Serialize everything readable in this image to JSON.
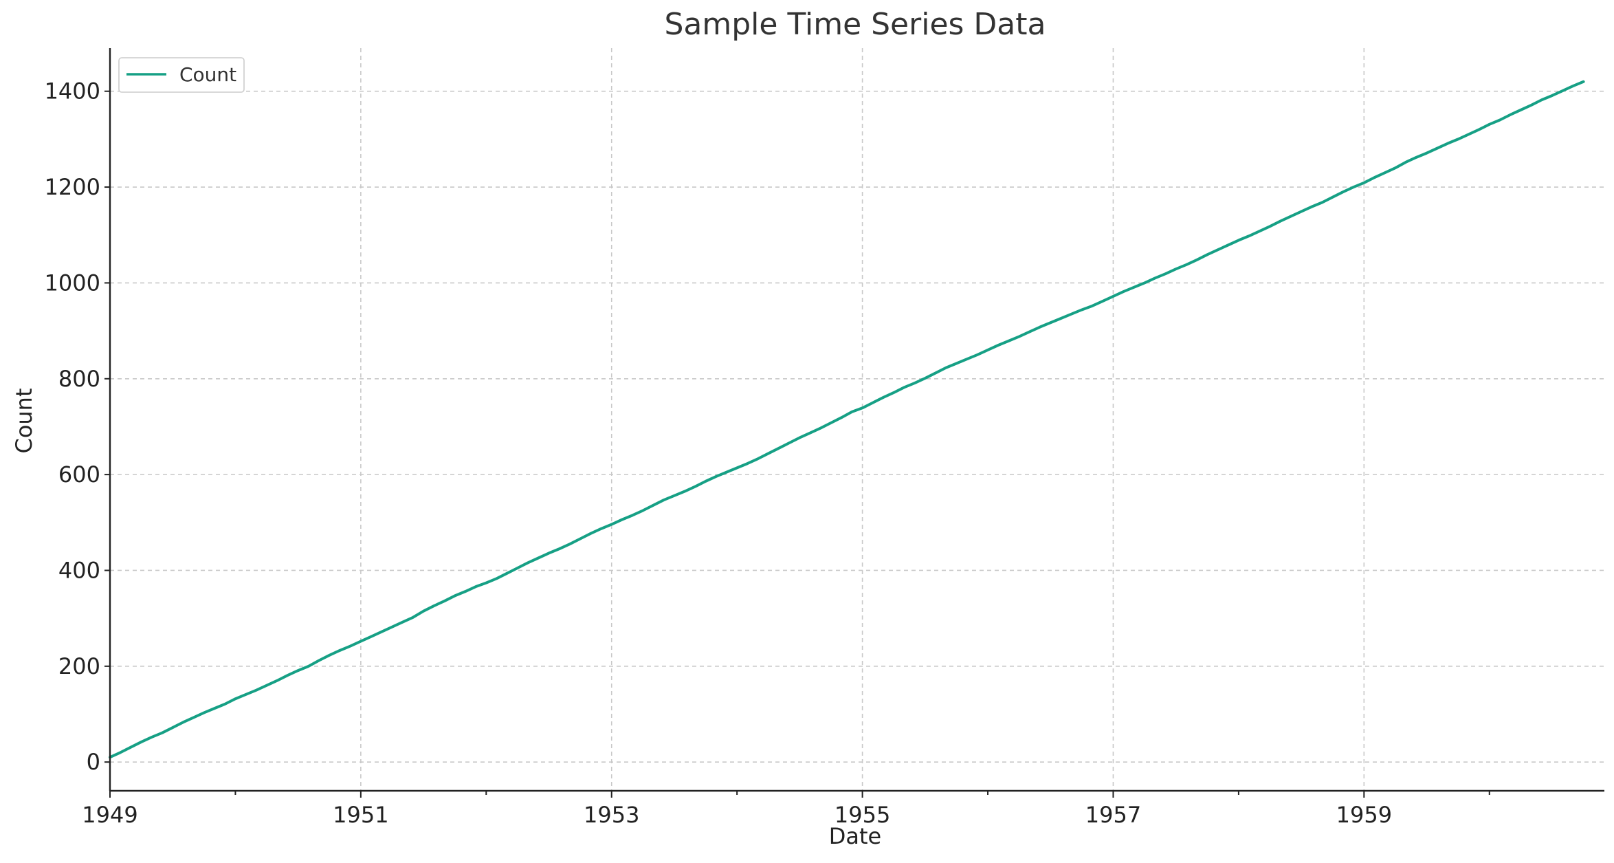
{
  "chart_data": {
    "type": "line",
    "title": "Sample Time Series Data",
    "xlabel": "Date",
    "ylabel": "Count",
    "x_start": "1949-01",
    "x_end": "1960-12",
    "x_frequency": "monthly",
    "xlim": [
      "1949-01",
      "1960-12"
    ],
    "ylim": [
      -60,
      1490
    ],
    "x_ticks": [
      "1949",
      "1951",
      "1953",
      "1955",
      "1957",
      "1959"
    ],
    "x_minor_ticks": [
      "1950",
      "1952",
      "1954",
      "1956",
      "1958",
      "1960"
    ],
    "y_ticks": [
      0,
      200,
      400,
      600,
      800,
      1000,
      1200,
      1400
    ],
    "grid": true,
    "legend": {
      "position": "top-left",
      "entries": [
        "Count"
      ]
    },
    "series": [
      {
        "name": "Count",
        "color": "#16a085",
        "values": [
          10,
          20,
          31,
          42,
          52,
          61,
          72,
          83,
          93,
          103,
          112,
          121,
          132,
          141,
          150,
          160,
          170,
          181,
          191,
          200,
          212,
          223,
          233,
          242,
          252,
          262,
          272,
          282,
          292,
          302,
          315,
          326,
          336,
          347,
          356,
          366,
          374,
          383,
          394,
          405,
          416,
          426,
          436,
          445,
          455,
          466,
          477,
          487,
          496,
          506,
          515,
          525,
          536,
          547,
          556,
          565,
          575,
          586,
          596,
          605,
          614,
          623,
          633,
          644,
          655,
          666,
          677,
          687,
          697,
          708,
          719,
          731,
          739,
          750,
          761,
          771,
          782,
          791,
          801,
          812,
          823,
          832,
          841,
          850,
          860,
          870,
          879,
          888,
          898,
          908,
          917,
          926,
          935,
          944,
          952,
          962,
          972,
          982,
          991,
          1000,
          1010,
          1019,
          1029,
          1038,
          1048,
          1059,
          1069,
          1079,
          1089,
          1098,
          1108,
          1118,
          1129,
          1139,
          1149,
          1159,
          1168,
          1179,
          1190,
          1200,
          1209,
          1220,
          1230,
          1240,
          1252,
          1262,
          1271,
          1281,
          1291,
          1300,
          1310,
          1320,
          1331,
          1340,
          1351,
          1361,
          1371,
          1382,
          1391,
          1401,
          1411,
          1420
        ]
      }
    ]
  }
}
